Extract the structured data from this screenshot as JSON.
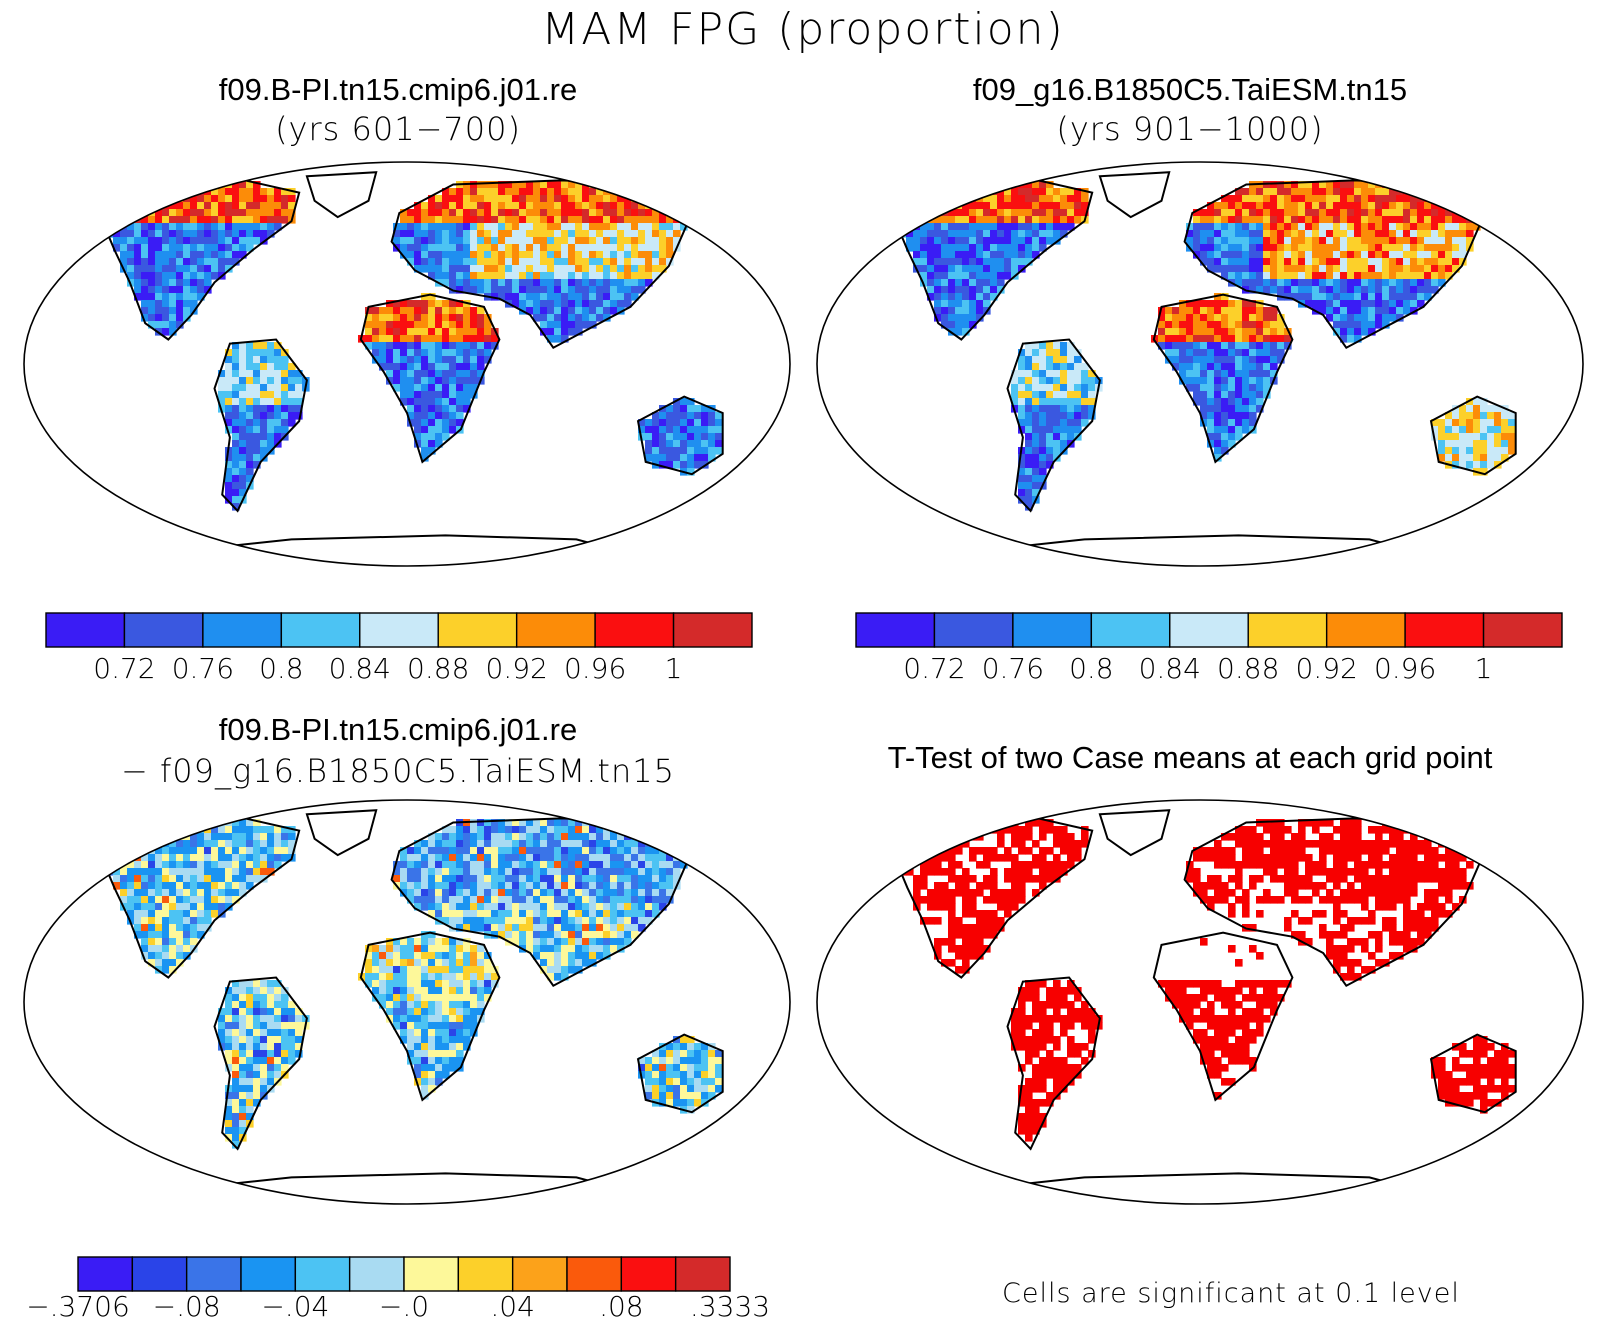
{
  "figure": {
    "title": "MAM FPG (proportion)"
  },
  "panels": [
    {
      "id": "p1",
      "title": "f09.B-PI.tn15.cmip6.j01.re",
      "subtitle": "(yrs 601−700)"
    },
    {
      "id": "p2",
      "title": "f09_g16.B1850C5.TaiESM.tn15",
      "subtitle": "(yrs 901−1000)"
    },
    {
      "id": "p3",
      "title": "f09.B-PI.tn15.cmip6.j01.re",
      "subtitle": "− f09_g16.B1850C5.TaiESM.tn15"
    },
    {
      "id": "p4",
      "title": "T-Test of two Case means at each grid point",
      "subtitle": ""
    }
  ],
  "colorbar_abs": {
    "colors": [
      "#3a1cf5",
      "#3a58e0",
      "#1f8ff0",
      "#4cc3f3",
      "#c9e9f8",
      "#fcd02a",
      "#fc8c08",
      "#fa0f10",
      "#d42a2a"
    ],
    "labels": [
      "0.72",
      "0.76",
      "0.8",
      "0.84",
      "0.88",
      "0.92",
      "0.96",
      "1"
    ]
  },
  "colorbar_diff": {
    "colors": [
      "#3a1cf5",
      "#2a44e8",
      "#3a74e8",
      "#1a94f2",
      "#4cc3f3",
      "#a9dbf2",
      "#fdf89a",
      "#fcd02a",
      "#fca21a",
      "#fa5a0c",
      "#fa0f10",
      "#d42a2a"
    ],
    "labels": [
      "−.3706",
      "−.08",
      "−.04",
      "−.0",
      ".04",
      ".08",
      ".3333"
    ]
  },
  "significance_note": "Cells are significant at 0.1 level"
}
